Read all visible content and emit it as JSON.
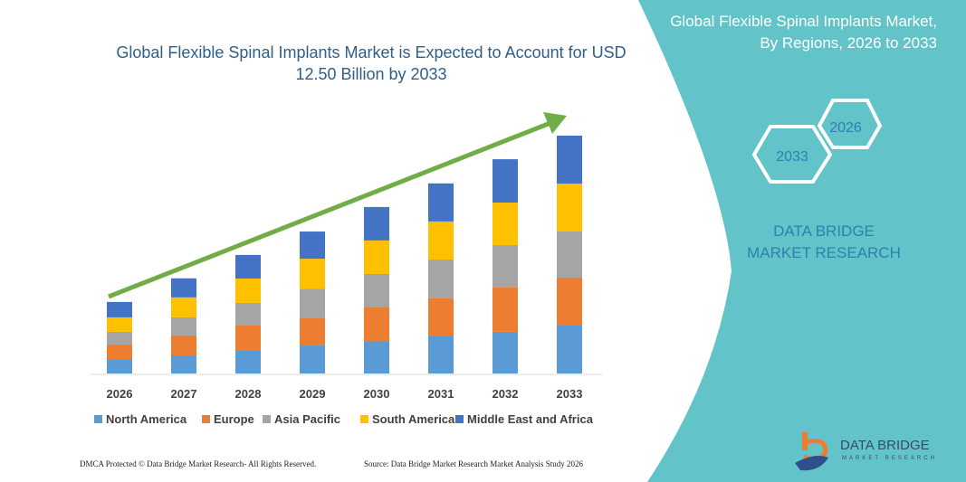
{
  "title": "Global Flexible Spinal Implants Market is Expected to Account for USD 12.50 Billion by 2033",
  "panel": {
    "title": "Global Flexible Spinal Implants Market, By Regions, 2026 to 2033",
    "hex_left": "2033",
    "hex_right": "2026",
    "brand": "DATA BRIDGE MARKET RESEARCH",
    "bg_color": "#62c4c8"
  },
  "footer": {
    "left": "DMCA Protected © Data Bridge Market Research- All Rights Reserved.",
    "right": "Source: Data Bridge Market Research Market Analysis Study 2026"
  },
  "logo": {
    "name": "DATA BRIDGE",
    "sub": "MARKET RESEARCH"
  },
  "chart_data": {
    "type": "bar",
    "stacked": true,
    "title": "Global Flexible Spinal Implants Market is Expected to Account for USD 12.50 Billion by 2033",
    "categories": [
      "2026",
      "2027",
      "2028",
      "2029",
      "2030",
      "2031",
      "2032",
      "2033"
    ],
    "legend_position": "bottom",
    "grid": false,
    "series": [
      {
        "name": "North America",
        "color": "#5b9bd5",
        "values": [
          0.76,
          0.95,
          1.19,
          1.47,
          1.71,
          1.95,
          2.19,
          2.52
        ]
      },
      {
        "name": "Europe",
        "color": "#ed7d31",
        "values": [
          0.76,
          1.05,
          1.33,
          1.47,
          1.76,
          2.0,
          2.33,
          2.52
        ]
      },
      {
        "name": "Asia Pacific",
        "color": "#a5a5a5",
        "values": [
          0.67,
          0.95,
          1.19,
          1.52,
          1.76,
          2.04,
          2.23,
          2.42
        ]
      },
      {
        "name": "South America",
        "color": "#ffc000",
        "values": [
          0.76,
          1.05,
          1.28,
          1.57,
          1.76,
          2.0,
          2.23,
          2.52
        ]
      },
      {
        "name": "Middle East and Africa",
        "color": "#4472c4",
        "values": [
          0.81,
          1.0,
          1.24,
          1.43,
          1.76,
          2.0,
          2.28,
          2.52
        ]
      }
    ],
    "trend_arrow_color": "#70ad47"
  }
}
